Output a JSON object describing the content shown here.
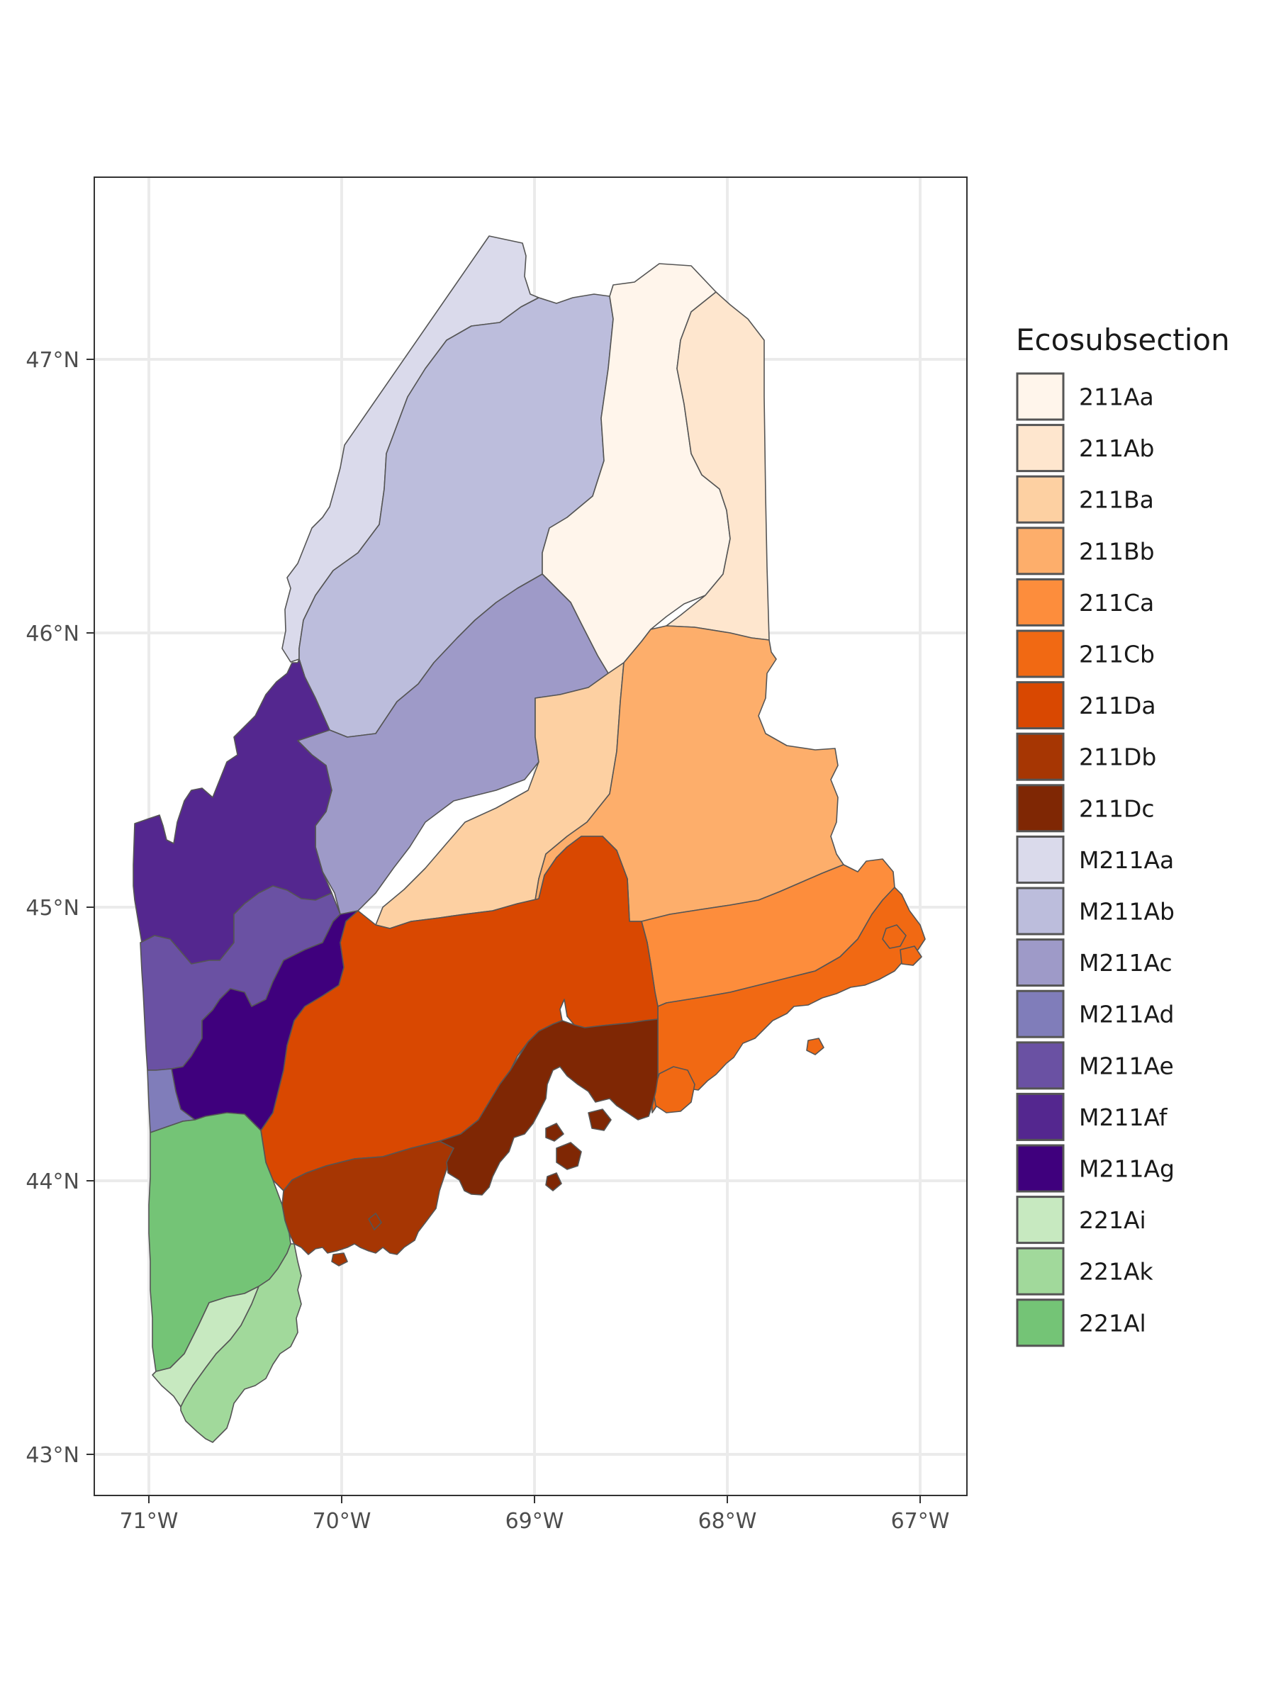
{
  "map": {
    "x_ticks": [
      "71°W",
      "70°W",
      "69°W",
      "68°W",
      "67°W"
    ],
    "y_ticks": [
      "47°N",
      "46°N",
      "45°N",
      "44°N",
      "43°N"
    ],
    "x_tick_values": [
      -71,
      -70,
      -69,
      -68,
      -67
    ],
    "y_tick_values": [
      47,
      46,
      45,
      44,
      43
    ],
    "lon_range": [
      -71.3,
      -66.75
    ],
    "lat_range": [
      42.85,
      47.68
    ],
    "grid": true
  },
  "legend": {
    "title": "Ecosubsection",
    "placement": "right",
    "items": [
      {
        "label": "211Aa",
        "color": "#fff5eb"
      },
      {
        "label": "211Ab",
        "color": "#fee6ce"
      },
      {
        "label": "211Ba",
        "color": "#fdd0a2"
      },
      {
        "label": "211Bb",
        "color": "#fdae6b"
      },
      {
        "label": "211Ca",
        "color": "#fd8d3c"
      },
      {
        "label": "211Cb",
        "color": "#f16913"
      },
      {
        "label": "211Da",
        "color": "#d94801"
      },
      {
        "label": "211Db",
        "color": "#a63603"
      },
      {
        "label": "211Dc",
        "color": "#7f2704"
      },
      {
        "label": "M211Aa",
        "color": "#dadaeb"
      },
      {
        "label": "M211Ab",
        "color": "#bcbddc"
      },
      {
        "label": "M211Ac",
        "color": "#9e9ac8"
      },
      {
        "label": "M211Ad",
        "color": "#807dba"
      },
      {
        "label": "M211Ae",
        "color": "#6a51a3"
      },
      {
        "label": "M211Af",
        "color": "#54278f"
      },
      {
        "label": "M211Ag",
        "color": "#3f007d"
      },
      {
        "label": "221Ai",
        "color": "#c7e9c0"
      },
      {
        "label": "221Ak",
        "color": "#a1d99b"
      },
      {
        "label": "221Al",
        "color": "#74c476"
      }
    ]
  }
}
